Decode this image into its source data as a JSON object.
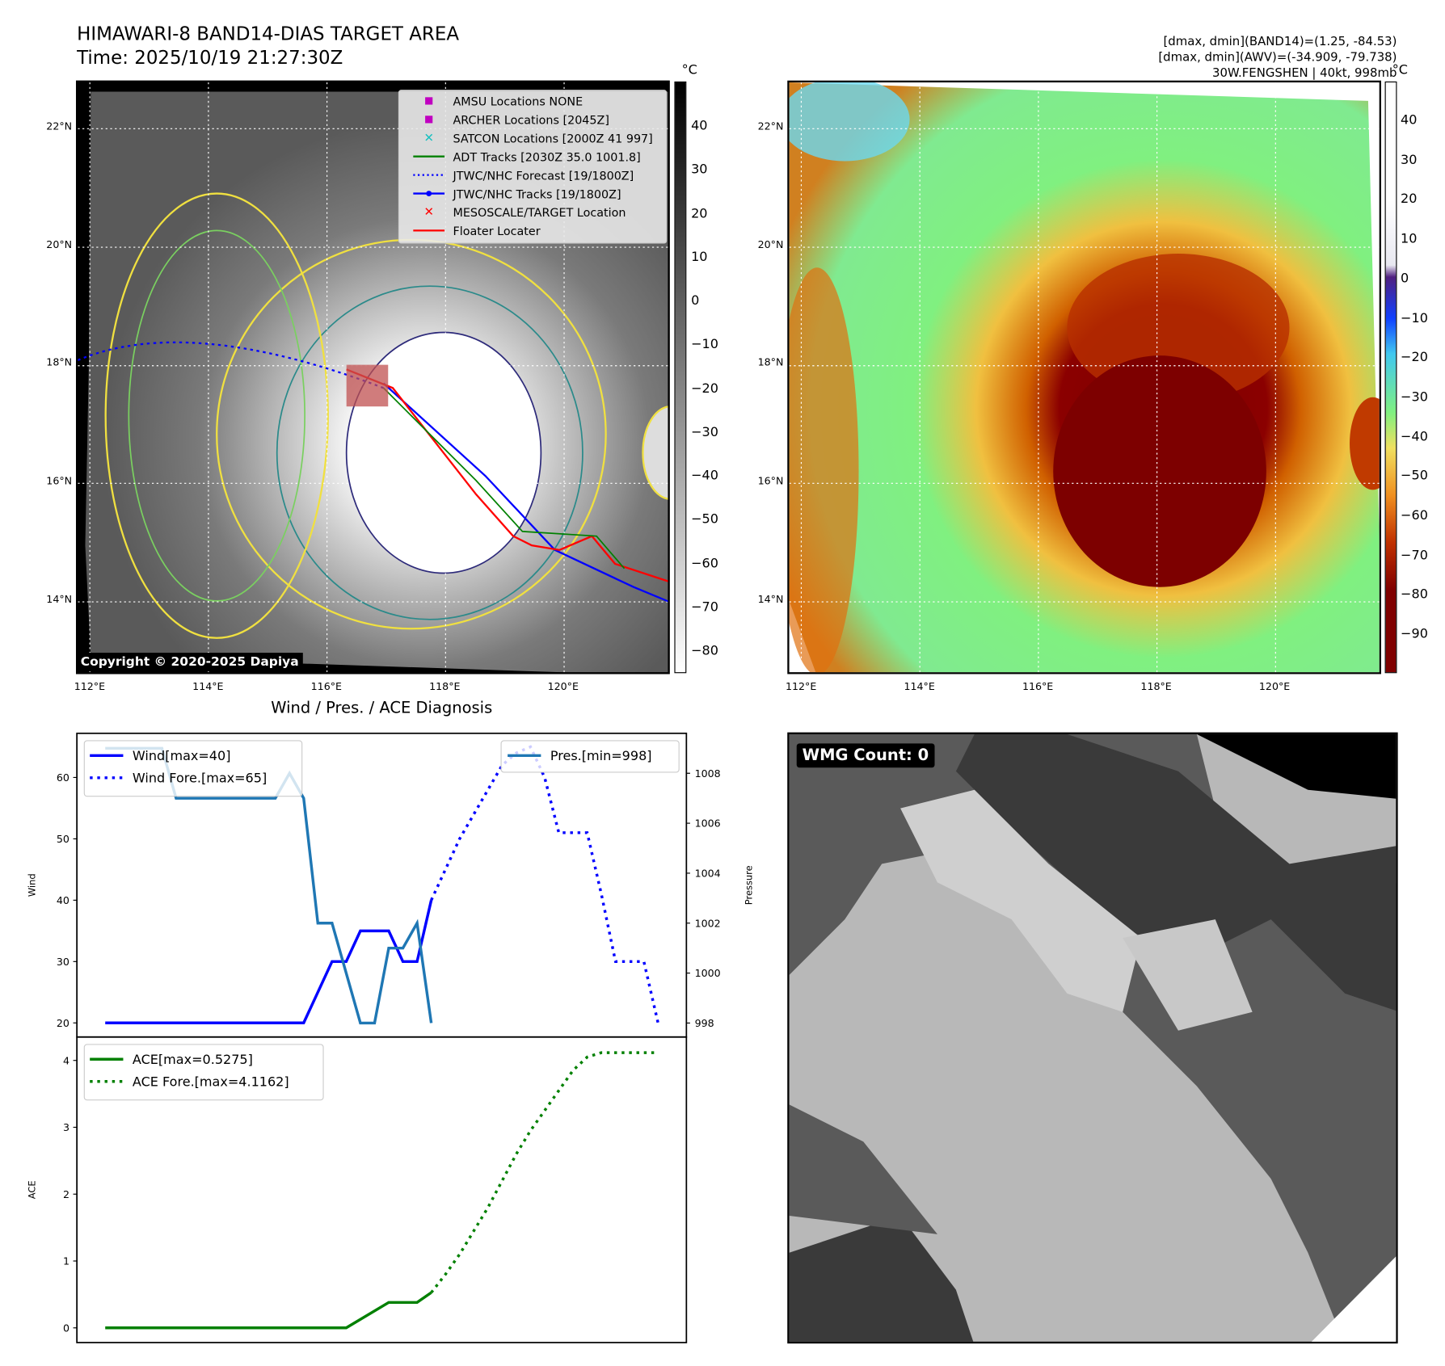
{
  "header": {
    "title": "HIMAWARI-8 BAND14-DIAS TARGET AREA",
    "time": "Time: 2025/10/19 21:27:30Z",
    "stat_band14": "[dmax, dmin](BAND14)=(1.25, -84.53)",
    "stat_awv": "[dmax, dmin](AWV)=(-34.909, -79.738)",
    "storm": "30W.FENGSHEN | 40kt, 998mb"
  },
  "map_ir": {
    "unit": "°C",
    "colorbar_ticks": [
      "40",
      "30",
      "20",
      "10",
      "0",
      "−10",
      "−20",
      "−30",
      "−40",
      "−50",
      "−60",
      "−70",
      "−80"
    ],
    "lat_labels": [
      "22°N",
      "20°N",
      "18°N",
      "16°N",
      "14°N"
    ],
    "lon_labels": [
      "112°E",
      "114°E",
      "116°E",
      "118°E",
      "120°E"
    ],
    "copyright": "Copyright © 2020-2025 Dapiya",
    "legend": [
      {
        "label": "AMSU Locations NONE",
        "color": "#c000c0"
      },
      {
        "label": "ARCHER Locations [2045Z]",
        "color": "#c000c0"
      },
      {
        "label": "SATCON Locations [2000Z 41 997]",
        "color": "#17c0c0"
      },
      {
        "label": "ADT Tracks [2030Z 35.0 1001.8]",
        "color": "#008000"
      },
      {
        "label": "JTWC/NHC Forecast [19/1800Z]",
        "color": "#0000ff"
      },
      {
        "label": "JTWC/NHC Tracks [19/1800Z]",
        "color": "#0000ff"
      },
      {
        "label": "MESOSCALE/TARGET Location",
        "color": "#ff0000"
      },
      {
        "label": "Floater Locater",
        "color": "#ff0000"
      }
    ]
  },
  "map_awv": {
    "unit": "°C",
    "colorbar_ticks": [
      "40",
      "30",
      "20",
      "10",
      "0",
      "−10",
      "−20",
      "−30",
      "−40",
      "−50",
      "−60",
      "−70",
      "−80",
      "−90"
    ],
    "lat_labels": [
      "22°N",
      "20°N",
      "18°N",
      "16°N",
      "14°N"
    ],
    "lon_labels": [
      "112°E",
      "114°E",
      "116°E",
      "118°E",
      "120°E"
    ]
  },
  "wmg": {
    "label": "WMG Count: 0"
  },
  "chart_data": [
    {
      "type": "line",
      "title": "Wind / Pres. / ACE Diagnosis",
      "ylabel": "Wind",
      "ylabel_right": "Pressure",
      "ylim": [
        17.7,
        67.2
      ],
      "ylim_right": [
        997.44,
        1009.6
      ],
      "xlim": [
        -2,
        41
      ],
      "yticks": [
        20,
        30,
        40,
        50,
        60
      ],
      "yticks_right": [
        998,
        1000,
        1002,
        1004,
        1006,
        1008
      ],
      "series": [
        {
          "name": "Wind[max=40]",
          "axis": "left",
          "style": "solid",
          "color": "#0000ff",
          "x": [
            0,
            14,
            16,
            17,
            18,
            20,
            21,
            22,
            23
          ],
          "y": [
            20,
            20,
            30,
            30,
            35,
            35,
            30,
            30,
            40
          ]
        },
        {
          "name": "Wind Fore.[max=65]",
          "axis": "left",
          "style": "dotted",
          "color": "#0000ff",
          "x": [
            23,
            24,
            25,
            26,
            27,
            28,
            29,
            30,
            31,
            32,
            33,
            34,
            35,
            36,
            37,
            38,
            39
          ],
          "y": [
            40,
            45,
            50,
            54,
            58,
            62,
            64,
            65,
            60,
            51,
            51,
            51,
            41,
            30,
            30,
            30,
            20
          ]
        },
        {
          "name": "Pres.[min=998]",
          "axis": "right",
          "style": "solid",
          "color": "#1f77b4",
          "x": [
            0,
            4,
            5,
            12,
            13,
            14,
            15,
            16,
            18,
            19,
            20,
            21,
            22,
            23
          ],
          "y": [
            1009,
            1009,
            1007,
            1007,
            1008,
            1007,
            1002,
            1002,
            998,
            998,
            1001,
            1001,
            1002,
            998
          ]
        }
      ],
      "legend_left": [
        "Wind[max=40]",
        "Wind Fore.[max=65]"
      ],
      "legend_right": [
        "Pres.[min=998]"
      ]
    },
    {
      "type": "line",
      "ylabel": "ACE",
      "ylim": [
        -0.22,
        4.35
      ],
      "xlim": [
        -2,
        41
      ],
      "yticks": [
        0,
        1,
        2,
        3,
        4
      ],
      "series": [
        {
          "name": "ACE[max=0.5275]",
          "style": "solid",
          "color": "#008000",
          "x": [
            0,
            17,
            20,
            22,
            23
          ],
          "y": [
            0,
            0,
            0.38,
            0.38,
            0.5275
          ]
        },
        {
          "name": "ACE Fore.[max=4.1162]",
          "style": "dotted",
          "color": "#008000",
          "x": [
            23,
            24,
            25,
            26,
            27,
            28,
            29,
            30,
            31,
            32,
            33,
            34,
            35,
            36,
            37,
            38,
            39
          ],
          "y": [
            0.5275,
            0.8,
            1.1,
            1.45,
            1.8,
            2.2,
            2.6,
            2.95,
            3.25,
            3.55,
            3.85,
            4.05,
            4.1162,
            4.1162,
            4.1162,
            4.1162,
            4.1162
          ]
        }
      ]
    }
  ]
}
